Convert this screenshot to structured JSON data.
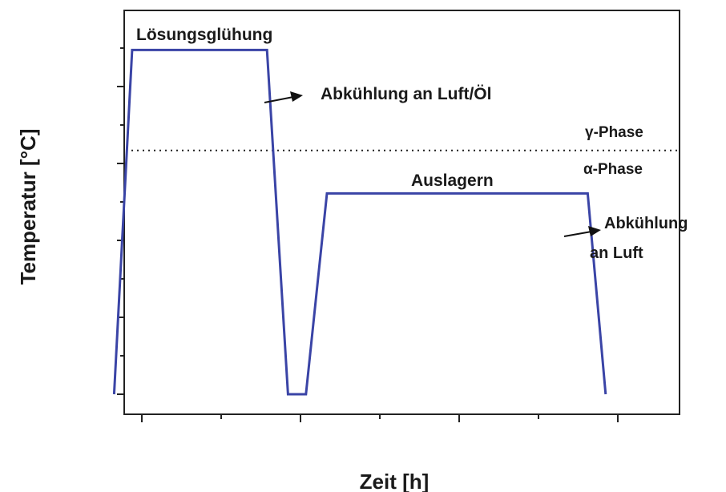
{
  "chart_data": {
    "type": "line",
    "xlabel": "Zeit [h]",
    "ylabel": "Temperatur [°C]",
    "grid": false,
    "xlim": [
      0,
      100
    ],
    "ylim": [
      0,
      100
    ],
    "series": [
      {
        "values": [
          {
            "x": 3,
            "y": 0
          },
          {
            "x": 6,
            "y": 96
          },
          {
            "x": 28.5,
            "y": 96
          },
          {
            "x": 32,
            "y": 0
          },
          {
            "x": 35,
            "y": 0
          },
          {
            "x": 38.5,
            "y": 56
          },
          {
            "x": 82,
            "y": 56
          },
          {
            "x": 85,
            "y": 0
          }
        ],
        "color": "#3a44a6"
      }
    ],
    "reference_line": {
      "y": 68,
      "style": "dotted"
    },
    "annotations": {
      "solution": "Lösungsglühung",
      "quench": "Abkühlung an Luft/Öl",
      "gamma": "γ-Phase",
      "alpha": "α-Phase",
      "aging": "Auslagern",
      "cool_line1": "Abkühlung",
      "cool_line2": "an Luft"
    }
  }
}
